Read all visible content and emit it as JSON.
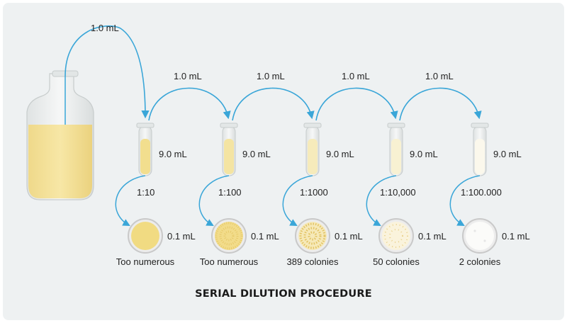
{
  "diagram": {
    "title": "SERIAL DILUTION PROCEDURE",
    "flask_transfer": "1.0 mL",
    "stages": [
      {
        "transfer_in": "1.0 mL",
        "tube_volume": "9.0 mL",
        "dilution": "1:10",
        "plated_volume": "0.1 mL",
        "result": "Too numerous"
      },
      {
        "transfer_in": "1.0 mL",
        "tube_volume": "9.0 mL",
        "dilution": "1:100",
        "plated_volume": "0.1 mL",
        "result": "Too numerous"
      },
      {
        "transfer_in": "1.0 mL",
        "tube_volume": "9.0 mL",
        "dilution": "1:1000",
        "plated_volume": "0.1 mL",
        "result": "389 colonies"
      },
      {
        "transfer_in": "1.0 mL",
        "tube_volume": "9.0 mL",
        "dilution": "1:10,000",
        "plated_volume": "0.1 mL",
        "result": "50 colonies"
      },
      {
        "transfer_in": "1.0 mL",
        "tube_volume": "9.0 mL",
        "dilution": "1:100.000",
        "plated_volume": "0.1 mL",
        "result": "2 colonies"
      }
    ],
    "colors": {
      "arrow": "#3aa6d8",
      "culture": "#f3e29a",
      "glass": "#e9ecec",
      "plate_rim": "#c9c9c9"
    }
  }
}
